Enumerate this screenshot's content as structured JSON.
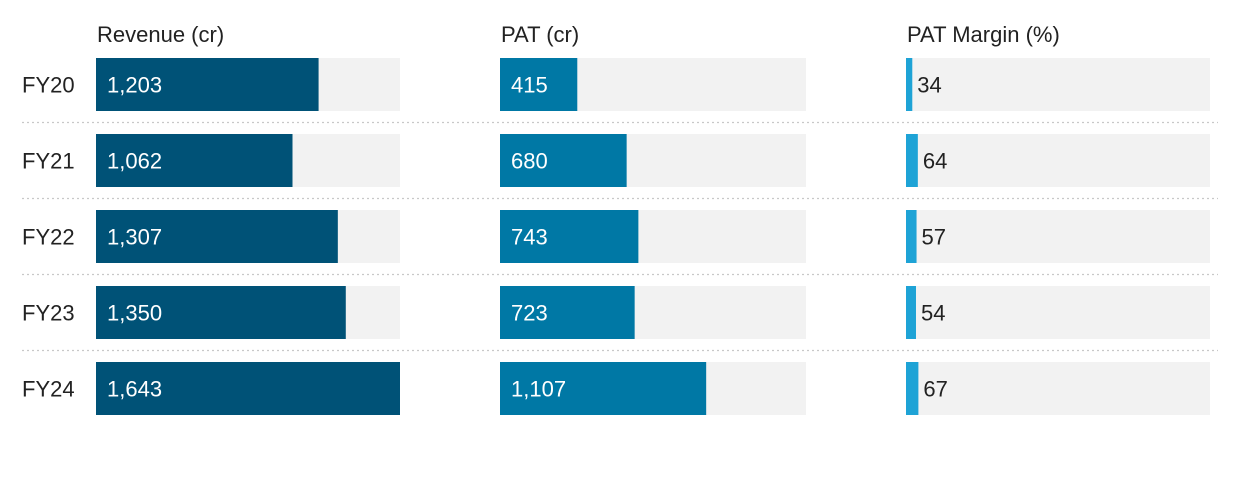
{
  "chart_data": {
    "type": "bar",
    "categories": [
      "FY20",
      "FY21",
      "FY22",
      "FY23",
      "FY24"
    ],
    "series": [
      {
        "name": "Revenue (cr)",
        "values": [
          1203,
          1062,
          1307,
          1350,
          1643
        ],
        "labels": [
          "1,203",
          "1,062",
          "1,307",
          "1,350",
          "1,643"
        ],
        "max": 1643,
        "color": "#005277"
      },
      {
        "name": "PAT (cr)",
        "values": [
          415,
          680,
          743,
          723,
          1107
        ],
        "labels": [
          "415",
          "680",
          "743",
          "723",
          "1,107"
        ],
        "max": 1643,
        "color": "#0078A5"
      },
      {
        "name": "PAT Margin (%)",
        "values": [
          34,
          64,
          57,
          54,
          67
        ],
        "labels": [
          "34",
          "64",
          "57",
          "54",
          "67"
        ],
        "max": 1643,
        "color": "#1EA3D6"
      }
    ],
    "track_color": "#F2F2F2"
  }
}
